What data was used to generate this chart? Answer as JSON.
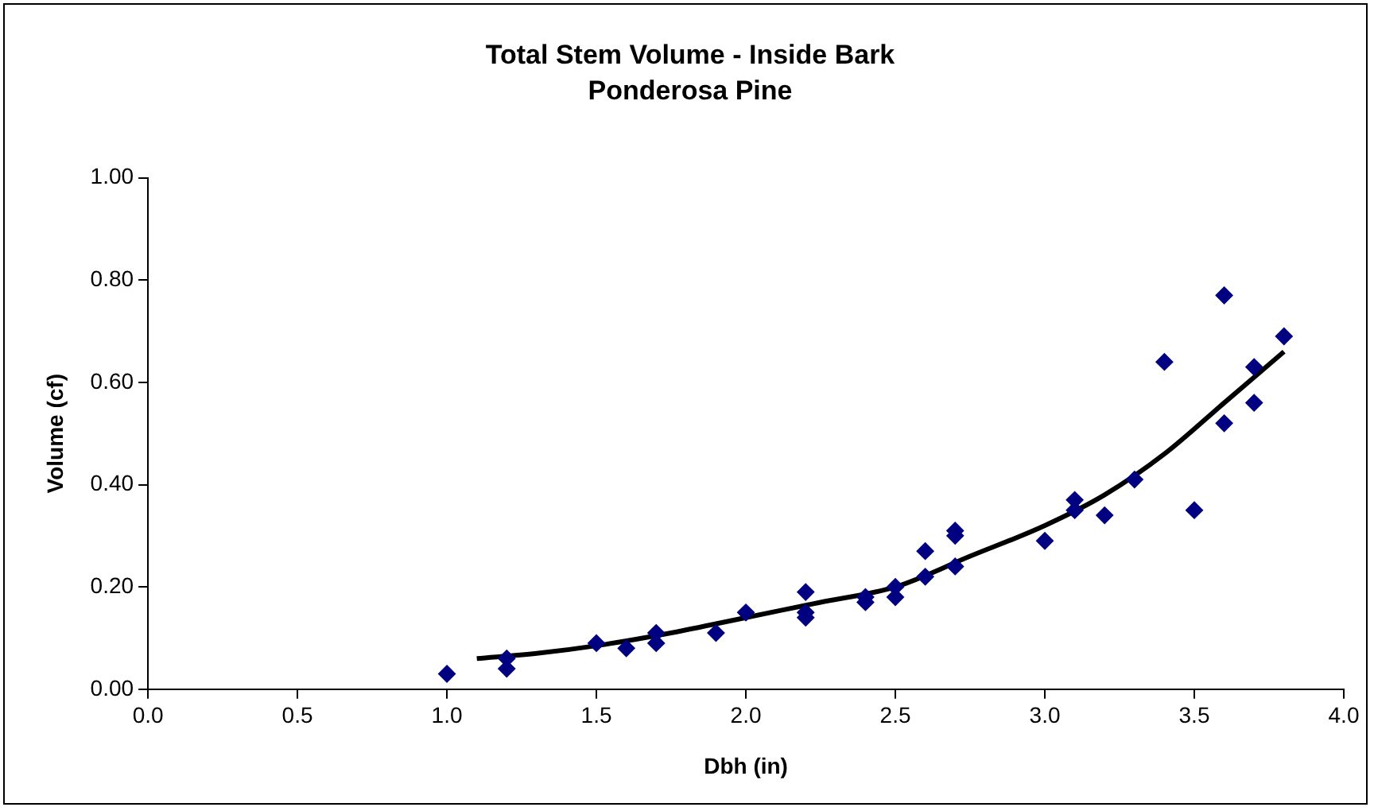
{
  "chart_data": {
    "type": "scatter",
    "title": "Total Stem Volume - Inside Bark",
    "subtitle": "Ponderosa Pine",
    "xlabel": "Dbh (in)",
    "ylabel": "Volume (cf)",
    "xlim": [
      0,
      4
    ],
    "xticks": [
      {
        "value": 0,
        "label": "0.0"
      },
      {
        "value": 0.5,
        "label": "0.5"
      },
      {
        "value": 1,
        "label": "1.0"
      },
      {
        "value": 1.5,
        "label": "1.5"
      },
      {
        "value": 2,
        "label": "2.0"
      },
      {
        "value": 2.5,
        "label": "2.5"
      },
      {
        "value": 3,
        "label": "3.0"
      },
      {
        "value": 3.5,
        "label": "3.5"
      },
      {
        "value": 4,
        "label": "4.0"
      }
    ],
    "ylim": [
      0,
      1
    ],
    "yticks": [
      {
        "value": 0,
        "label": "0.00"
      },
      {
        "value": 0.2,
        "label": "0.20"
      },
      {
        "value": 0.4,
        "label": "0.40"
      },
      {
        "value": 0.6,
        "label": "0.60"
      },
      {
        "value": 0.8,
        "label": "0.80"
      },
      {
        "value": 1,
        "label": "1.00"
      }
    ],
    "grid": false,
    "legend": false,
    "marker": "diamond",
    "series": [
      {
        "color": "#000080",
        "x": [
          1.0,
          1.2,
          1.2,
          1.5,
          1.6,
          1.7,
          1.7,
          1.9,
          2.0,
          2.2,
          2.2,
          2.2,
          2.4,
          2.4,
          2.5,
          2.5,
          2.6,
          2.6,
          2.7,
          2.7,
          2.7,
          3.0,
          3.1,
          3.1,
          3.2,
          3.3,
          3.4,
          3.5,
          3.6,
          3.6,
          3.7,
          3.7,
          3.8
        ],
        "values": [
          0.03,
          0.06,
          0.04,
          0.09,
          0.08,
          0.11,
          0.09,
          0.11,
          0.15,
          0.19,
          0.15,
          0.14,
          0.17,
          0.18,
          0.2,
          0.18,
          0.27,
          0.22,
          0.31,
          0.3,
          0.24,
          0.29,
          0.37,
          0.35,
          0.34,
          0.41,
          0.64,
          0.35,
          0.77,
          0.52,
          0.63,
          0.56,
          0.69
        ]
      },
      {
        "type": "line",
        "marker": "none",
        "color": "#000000",
        "x": [
          1.1,
          1.3,
          1.5,
          1.75,
          2.0,
          2.25,
          2.5,
          2.75,
          3.0,
          3.2,
          3.4,
          3.6,
          3.8
        ],
        "values": [
          0.06,
          0.07,
          0.085,
          0.11,
          0.14,
          0.17,
          0.2,
          0.26,
          0.32,
          0.38,
          0.46,
          0.56,
          0.66
        ]
      }
    ]
  }
}
